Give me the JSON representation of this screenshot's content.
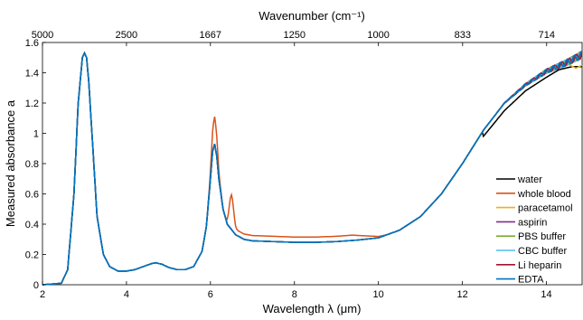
{
  "chart_data": {
    "type": "line",
    "xlabel": "Wavelength λ (μm)",
    "ylabel": "Measured absorbance a",
    "top_xlabel": "Wavenumber (cm⁻¹)",
    "xlim": [
      2,
      14.85
    ],
    "ylim": [
      0,
      1.6
    ],
    "x_ticks": [
      "2",
      "4",
      "6",
      "8",
      "10",
      "12",
      "14"
    ],
    "y_ticks": [
      "0",
      "0.2",
      "0.4",
      "0.6",
      "0.8",
      "1",
      "1.2",
      "1.4",
      "1.6"
    ],
    "top_ticks": [
      "5000",
      "2500",
      "1667",
      "1250",
      "1000",
      "833",
      "714"
    ],
    "legend_position": "lower-right",
    "base_curve": {
      "x": [
        2.0,
        2.45,
        2.6,
        2.75,
        2.85,
        2.95,
        3.0,
        3.05,
        3.1,
        3.2,
        3.3,
        3.45,
        3.6,
        3.8,
        4.0,
        4.2,
        4.4,
        4.6,
        4.7,
        4.85,
        5.0,
        5.2,
        5.4,
        5.6,
        5.8,
        5.9,
        6.0,
        6.05,
        6.1,
        6.15,
        6.2,
        6.3,
        6.4,
        6.6,
        6.8,
        7.0,
        7.5,
        8.0,
        8.5,
        9.0,
        9.5,
        10.0,
        10.5,
        11.0,
        11.5,
        12.0,
        12.5,
        13.0,
        13.5,
        14.0,
        14.5,
        14.85
      ],
      "y": [
        0.0,
        0.01,
        0.1,
        0.6,
        1.2,
        1.5,
        1.53,
        1.5,
        1.35,
        0.9,
        0.45,
        0.2,
        0.12,
        0.09,
        0.09,
        0.1,
        0.12,
        0.14,
        0.145,
        0.135,
        0.115,
        0.1,
        0.1,
        0.12,
        0.22,
        0.38,
        0.7,
        0.88,
        0.93,
        0.85,
        0.7,
        0.5,
        0.4,
        0.33,
        0.3,
        0.29,
        0.285,
        0.28,
        0.28,
        0.285,
        0.295,
        0.31,
        0.36,
        0.45,
        0.6,
        0.8,
        1.02,
        1.2,
        1.32,
        1.41,
        1.47,
        1.52
      ]
    },
    "series": [
      {
        "name": "water",
        "color": "#000000",
        "tail": [
          [
            12.5,
            0.98
          ],
          [
            13.0,
            1.15
          ],
          [
            13.5,
            1.28
          ],
          [
            14.0,
            1.37
          ],
          [
            14.3,
            1.42
          ],
          [
            14.6,
            1.44
          ],
          [
            14.85,
            1.44
          ]
        ]
      },
      {
        "name": "whole blood",
        "color": "#d95319",
        "peak": 1.11,
        "mid_offset": 0.035,
        "shoulder": [
          6.5,
          0.62
        ]
      },
      {
        "name": "paracetamol",
        "color": "#edb120",
        "tail": [
          [
            14.5,
            1.46
          ],
          [
            14.7,
            1.43
          ],
          [
            14.85,
            1.45
          ]
        ]
      },
      {
        "name": "aspirin",
        "color": "#7e2f8e"
      },
      {
        "name": "PBS buffer",
        "color": "#77ac30"
      },
      {
        "name": "CBC buffer",
        "color": "#4dbeee"
      },
      {
        "name": "Li heparin",
        "color": "#a2142f"
      },
      {
        "name": "EDTA",
        "color": "#0072bd"
      }
    ]
  }
}
